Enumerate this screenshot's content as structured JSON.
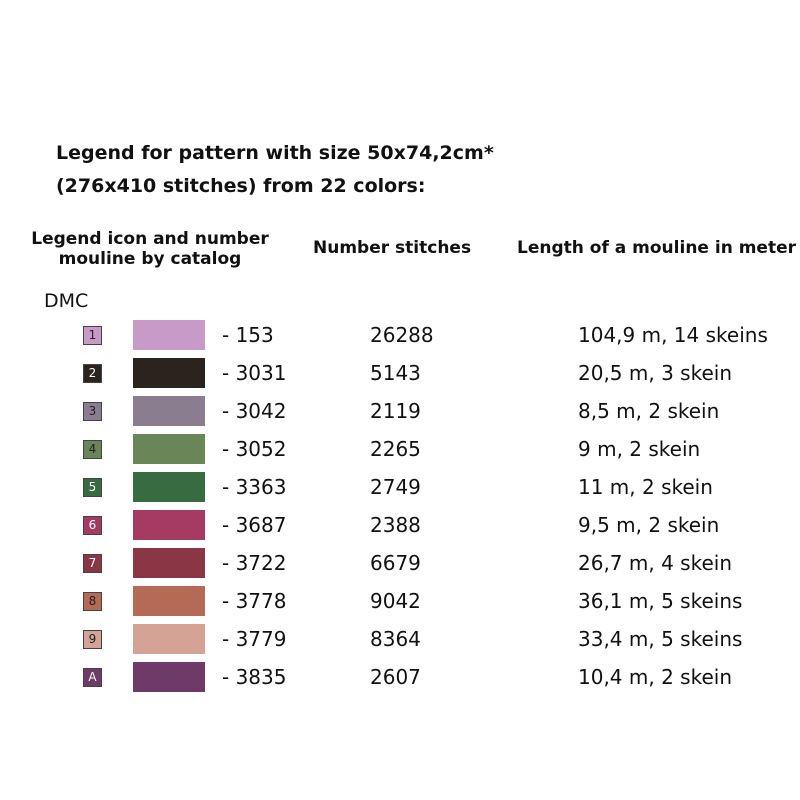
{
  "title": {
    "line1": "Legend for pattern with size 50x74,2cm*",
    "line2": "(276x410 stitches) from 22 colors:"
  },
  "headers": {
    "icon_line1": "Legend icon and number",
    "icon_line2": "mouline by catalog",
    "stitches": "Number stitches",
    "length": "Length of a mouline in meter"
  },
  "brand": "DMC",
  "rows": [
    {
      "icon": "1",
      "icon_bg": "#c89ac8",
      "icon_fg": "#222222",
      "swatch": "#c89ac8",
      "number": "- 153",
      "stitches": "26288",
      "length": "104,9 m, 14 skeins"
    },
    {
      "icon": "2",
      "icon_bg": "#2b241e",
      "icon_fg": "#ffffff",
      "swatch": "#2b241e",
      "number": "- 3031",
      "stitches": "5143",
      "length": "20,5 m, 3 skein"
    },
    {
      "icon": "3",
      "icon_bg": "#8a7d8f",
      "icon_fg": "#222222",
      "swatch": "#8a7d8f",
      "number": "- 3042",
      "stitches": "2119",
      "length": "8,5 m, 2 skein"
    },
    {
      "icon": "4",
      "icon_bg": "#6a8558",
      "icon_fg": "#222222",
      "swatch": "#6a8558",
      "number": "- 3052",
      "stitches": "2265",
      "length": "9 m, 2 skein"
    },
    {
      "icon": "5",
      "icon_bg": "#376b40",
      "icon_fg": "#ffffff",
      "swatch": "#376b40",
      "number": "- 3363",
      "stitches": "2749",
      "length": "11 m, 2 skein"
    },
    {
      "icon": "6",
      "icon_bg": "#a53b63",
      "icon_fg": "#ffffff",
      "swatch": "#a53b63",
      "number": "- 3687",
      "stitches": "2388",
      "length": "9,5 m, 2 skein"
    },
    {
      "icon": "7",
      "icon_bg": "#8a3644",
      "icon_fg": "#ffffff",
      "swatch": "#8a3644",
      "number": "- 3722",
      "stitches": "6679",
      "length": "26,7 m, 4 skein"
    },
    {
      "icon": "8",
      "icon_bg": "#b56a56",
      "icon_fg": "#222222",
      "swatch": "#b56a56",
      "number": "- 3778",
      "stitches": "9042",
      "length": "36,1 m, 5 skeins"
    },
    {
      "icon": "9",
      "icon_bg": "#d4a396",
      "icon_fg": "#222222",
      "swatch": "#d4a396",
      "number": "- 3779",
      "stitches": "8364",
      "length": "33,4 m, 5 skeins"
    },
    {
      "icon": "A",
      "icon_bg": "#6e3a68",
      "icon_fg": "#ffffff",
      "swatch": "#6e3a68",
      "number": "- 3835",
      "stitches": "2607",
      "length": "10,4 m, 2 skein"
    }
  ]
}
